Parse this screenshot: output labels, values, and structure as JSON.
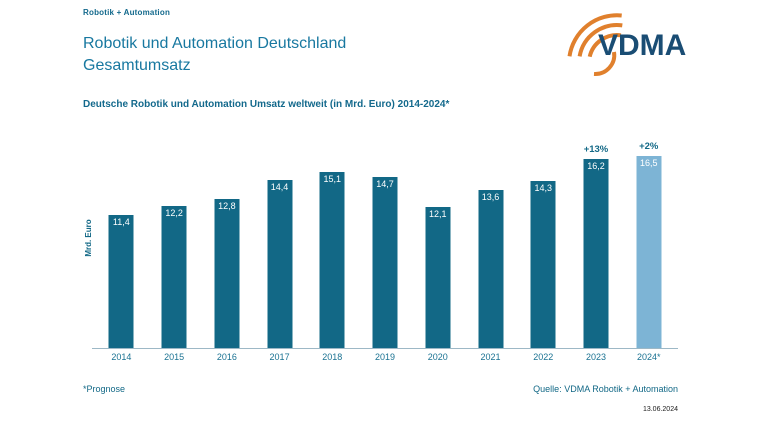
{
  "header": {
    "brand": "Robotik + Automation"
  },
  "title": {
    "line1": "Robotik und Automation Deutschland",
    "line2": "Gesamtumsatz"
  },
  "subtitle": "Deutsche Robotik und Automation Umsatz weltweit (in Mrd. Euro) 2014-2024*",
  "logo": {
    "text": "VDMA",
    "blue": "#1a4d74",
    "orange": "#e0802d"
  },
  "chart_data": {
    "type": "bar",
    "title": "Deutsche Robotik und Automation Umsatz weltweit (in Mrd. Euro) 2014-2024*",
    "ylabel": "Mrd. Euro",
    "ylim": [
      0,
      18
    ],
    "grid": false,
    "categories": [
      "2014",
      "2015",
      "2016",
      "2017",
      "2018",
      "2019",
      "2020",
      "2021",
      "2022",
      "2023",
      "2024*"
    ],
    "values": [
      11.4,
      12.2,
      12.8,
      14.4,
      15.1,
      14.7,
      12.1,
      13.6,
      14.3,
      16.2,
      16.5
    ],
    "value_labels": [
      "11,4",
      "12,2",
      "12,8",
      "14,4",
      "15,1",
      "14,7",
      "12,1",
      "13,6",
      "14,3",
      "16,2",
      "16,5"
    ],
    "growth_labels": [
      null,
      null,
      null,
      null,
      null,
      null,
      null,
      null,
      null,
      "+13%",
      "+2%"
    ],
    "forecast_index": 10,
    "bar_color": "#126886",
    "forecast_bar_color": "#7db4d5",
    "axis_line_color": "#9db8c6"
  },
  "footer": {
    "footnote": "*Prognose",
    "source": "Quelle: VDMA Robotik + Automation",
    "date": "13.06.2024"
  }
}
